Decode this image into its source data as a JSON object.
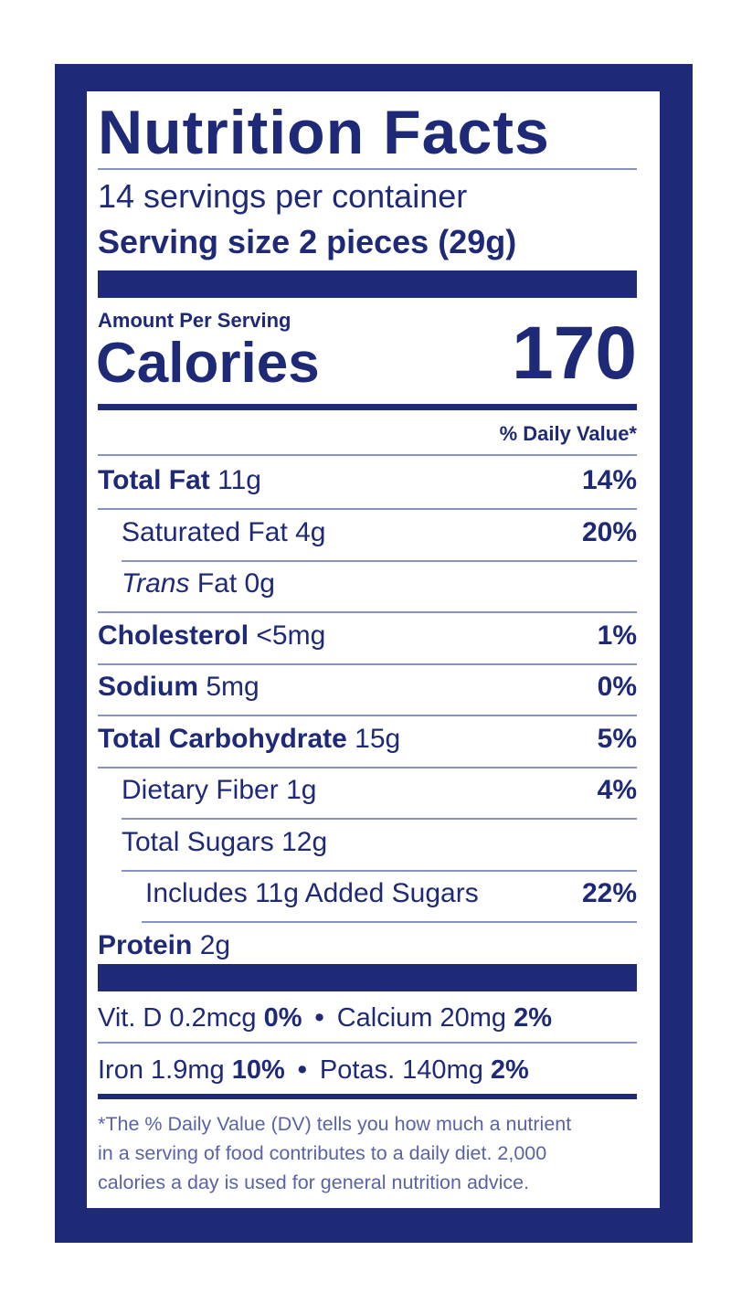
{
  "label": {
    "title": "Nutrition Facts",
    "servings": "14 servings per container",
    "serving_size": "Serving size 2 pieces (29g)",
    "amount_per_serving": "Amount Per Serving",
    "calories_label": "Calories",
    "calories": 170,
    "dv_header": "% Daily Value*",
    "nutrients": [
      {
        "label": "Total Fat",
        "amount": "11g",
        "dv": "14%",
        "bold": true,
        "indent": 0
      },
      {
        "label": "Saturated Fat",
        "amount": "4g",
        "dv": "20%",
        "bold": false,
        "indent": 1
      },
      {
        "label_italic": "Trans",
        "label": "Fat",
        "amount": "0g",
        "bold": false,
        "indent": 1
      },
      {
        "label": "Cholesterol",
        "amount": "<5mg",
        "dv": "1%",
        "bold": true,
        "indent": 0
      },
      {
        "label": "Sodium",
        "amount": "5mg",
        "dv": "0%",
        "bold": true,
        "indent": 0
      },
      {
        "label": "Total Carbohydrate",
        "amount": "15g",
        "dv": "5%",
        "bold": true,
        "indent": 0
      },
      {
        "label": "Dietary Fiber",
        "amount": "1g",
        "dv": "4%",
        "bold": false,
        "indent": 1
      },
      {
        "label": "Total Sugars",
        "amount": "12g",
        "bold": false,
        "indent": 1
      },
      {
        "label": "Includes 11g Added Sugars",
        "dv": "22%",
        "bold": false,
        "indent": 2
      },
      {
        "label": "Protein",
        "amount": "2g",
        "bold": true,
        "indent": 0
      }
    ],
    "vitamins": [
      [
        {
          "name": "Vit. D 0.2mcg",
          "dv": "0%"
        },
        {
          "name": "Calcium 20mg",
          "dv": "2%"
        }
      ],
      [
        {
          "name": "Iron 1.9mg",
          "dv": "10%"
        },
        {
          "name": "Potas. 140mg",
          "dv": "2%"
        }
      ]
    ],
    "footnote": [
      "*The % Daily Value (DV) tells you how much a nutrient",
      "in a serving of food contributes to a daily diet. 2,000",
      "calories a day is used for general nutrition advice."
    ]
  }
}
